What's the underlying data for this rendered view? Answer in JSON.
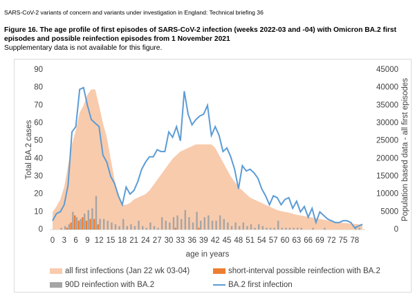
{
  "header": {
    "document": "SARS-CoV-2 variants of concern and variants under investigation in England: Technical briefing 36",
    "title": "Figure 16. The age profile of first episodes of SARS-CoV-2 infection (weeks 2022-03 and -04) with Omicron BA.2 first episodes and possible reinfection episodes from 1 November 2021",
    "subtitle": "Supplementary data is not available for this figure."
  },
  "chart_data": {
    "type": "combo",
    "xlabel": "age in years",
    "ylabel": "Total BA.2 cases",
    "y2label": "Population based data - all first episodes",
    "x": [
      0,
      1,
      2,
      3,
      4,
      5,
      6,
      7,
      8,
      9,
      10,
      11,
      12,
      13,
      14,
      15,
      16,
      17,
      18,
      19,
      20,
      21,
      22,
      23,
      24,
      25,
      26,
      27,
      28,
      29,
      30,
      31,
      32,
      33,
      34,
      35,
      36,
      37,
      38,
      39,
      40,
      41,
      42,
      43,
      44,
      45,
      46,
      47,
      48,
      49,
      50,
      51,
      52,
      53,
      54,
      55,
      56,
      57,
      58,
      59,
      60,
      61,
      62,
      63,
      64,
      65,
      66,
      67,
      68,
      69,
      70,
      71,
      72,
      73,
      74,
      75,
      76,
      77,
      78,
      79,
      80
    ],
    "xlim": [
      0,
      80
    ],
    "xticks": [
      0,
      3,
      6,
      9,
      12,
      15,
      18,
      21,
      24,
      27,
      30,
      33,
      36,
      39,
      42,
      45,
      48,
      51,
      54,
      57,
      60,
      63,
      66,
      69,
      72,
      75,
      78
    ],
    "ylim": [
      0,
      90
    ],
    "yticks": [
      0,
      10,
      20,
      30,
      40,
      50,
      60,
      70,
      80,
      90
    ],
    "y2lim": [
      0,
      45000
    ],
    "y2ticks": [
      0,
      5000,
      10000,
      15000,
      20000,
      25000,
      30000,
      35000,
      40000,
      45000
    ],
    "series": [
      {
        "name": "all first infections (Jan 22 wk 03-04)",
        "type": "area",
        "axis": "y2",
        "color": "#f8cbad",
        "values": [
          5000,
          6500,
          8500,
          12000,
          18000,
          24000,
          28000,
          33000,
          35000,
          38000,
          39500,
          39500,
          35000,
          30000,
          26000,
          20000,
          14000,
          9000,
          7000,
          7000,
          7500,
          8500,
          9000,
          9500,
          10000,
          11000,
          12500,
          14000,
          15500,
          17000,
          18500,
          20000,
          21000,
          22000,
          22500,
          23000,
          23500,
          24000,
          24000,
          24000,
          24000,
          24000,
          23000,
          21000,
          19000,
          17000,
          15000,
          13500,
          12000,
          11000,
          10000,
          9000,
          8500,
          8000,
          7500,
          7000,
          6500,
          6000,
          5500,
          5200,
          5000,
          4800,
          4500,
          4200,
          4000,
          3800,
          3600,
          3400,
          3200,
          3000,
          2800,
          2600,
          2400,
          2200,
          2000,
          1900,
          1800,
          1700,
          1600,
          1500,
          1400
        ]
      },
      {
        "name": "short-interval possible reinfection with BA.2",
        "type": "bar",
        "color": "#ed7d31",
        "values": [
          0,
          0,
          0,
          0,
          1,
          4,
          8,
          5,
          7,
          5,
          6,
          6,
          3,
          0,
          0,
          0,
          0,
          0,
          0,
          0,
          0,
          0,
          0,
          0,
          0,
          0,
          0,
          0,
          0,
          0,
          0,
          0,
          1,
          0,
          0,
          0,
          0,
          0,
          1,
          0,
          0,
          0,
          0,
          0,
          0,
          0,
          0,
          0,
          0,
          0,
          0,
          0,
          0,
          0,
          0,
          0,
          0,
          0,
          0,
          0,
          0,
          0,
          0,
          0,
          0,
          0,
          0,
          0,
          0,
          0,
          0,
          0,
          0,
          0,
          0,
          0,
          0,
          0,
          0,
          0,
          0
        ]
      },
      {
        "name": "90D reinfection with BA.2",
        "type": "bar",
        "color": "#a5a5a5",
        "values": [
          0,
          0,
          1,
          2,
          3,
          10,
          7,
          6,
          9,
          11,
          12,
          19,
          6,
          6,
          5,
          4,
          3,
          2,
          6,
          2,
          3,
          2,
          5,
          2,
          1,
          4,
          2,
          1,
          7,
          5,
          4,
          7,
          8,
          6,
          11,
          7,
          4,
          10,
          5,
          7,
          8,
          5,
          5,
          8,
          6,
          4,
          2,
          4,
          2,
          4,
          2,
          3,
          1,
          3,
          2,
          1,
          1,
          1,
          5,
          1,
          1,
          1,
          1,
          1,
          1,
          0,
          0,
          1,
          0,
          0,
          1,
          0,
          0,
          0,
          0,
          0,
          0,
          0,
          1,
          1,
          0
        ]
      },
      {
        "name": "BA.2 first infection",
        "type": "line",
        "color": "#5b9bd5",
        "values": [
          5,
          9,
          10,
          14,
          25,
          55,
          58,
          79,
          80,
          70,
          62,
          60,
          58,
          42,
          38,
          30,
          26,
          19,
          14,
          24,
          20,
          22,
          27,
          34,
          38,
          41,
          41,
          45,
          44,
          44,
          55,
          52,
          58,
          50,
          78,
          65,
          59,
          62,
          64,
          65,
          70,
          53,
          58,
          53,
          44,
          46,
          41,
          34,
          23,
          36,
          33,
          34,
          32,
          29,
          23,
          19,
          14,
          19,
          18,
          14,
          17,
          18,
          12,
          16,
          10,
          13,
          7,
          12,
          4,
          10,
          8,
          6,
          5,
          4,
          4,
          5,
          5,
          4,
          1,
          2,
          3
        ]
      }
    ]
  }
}
